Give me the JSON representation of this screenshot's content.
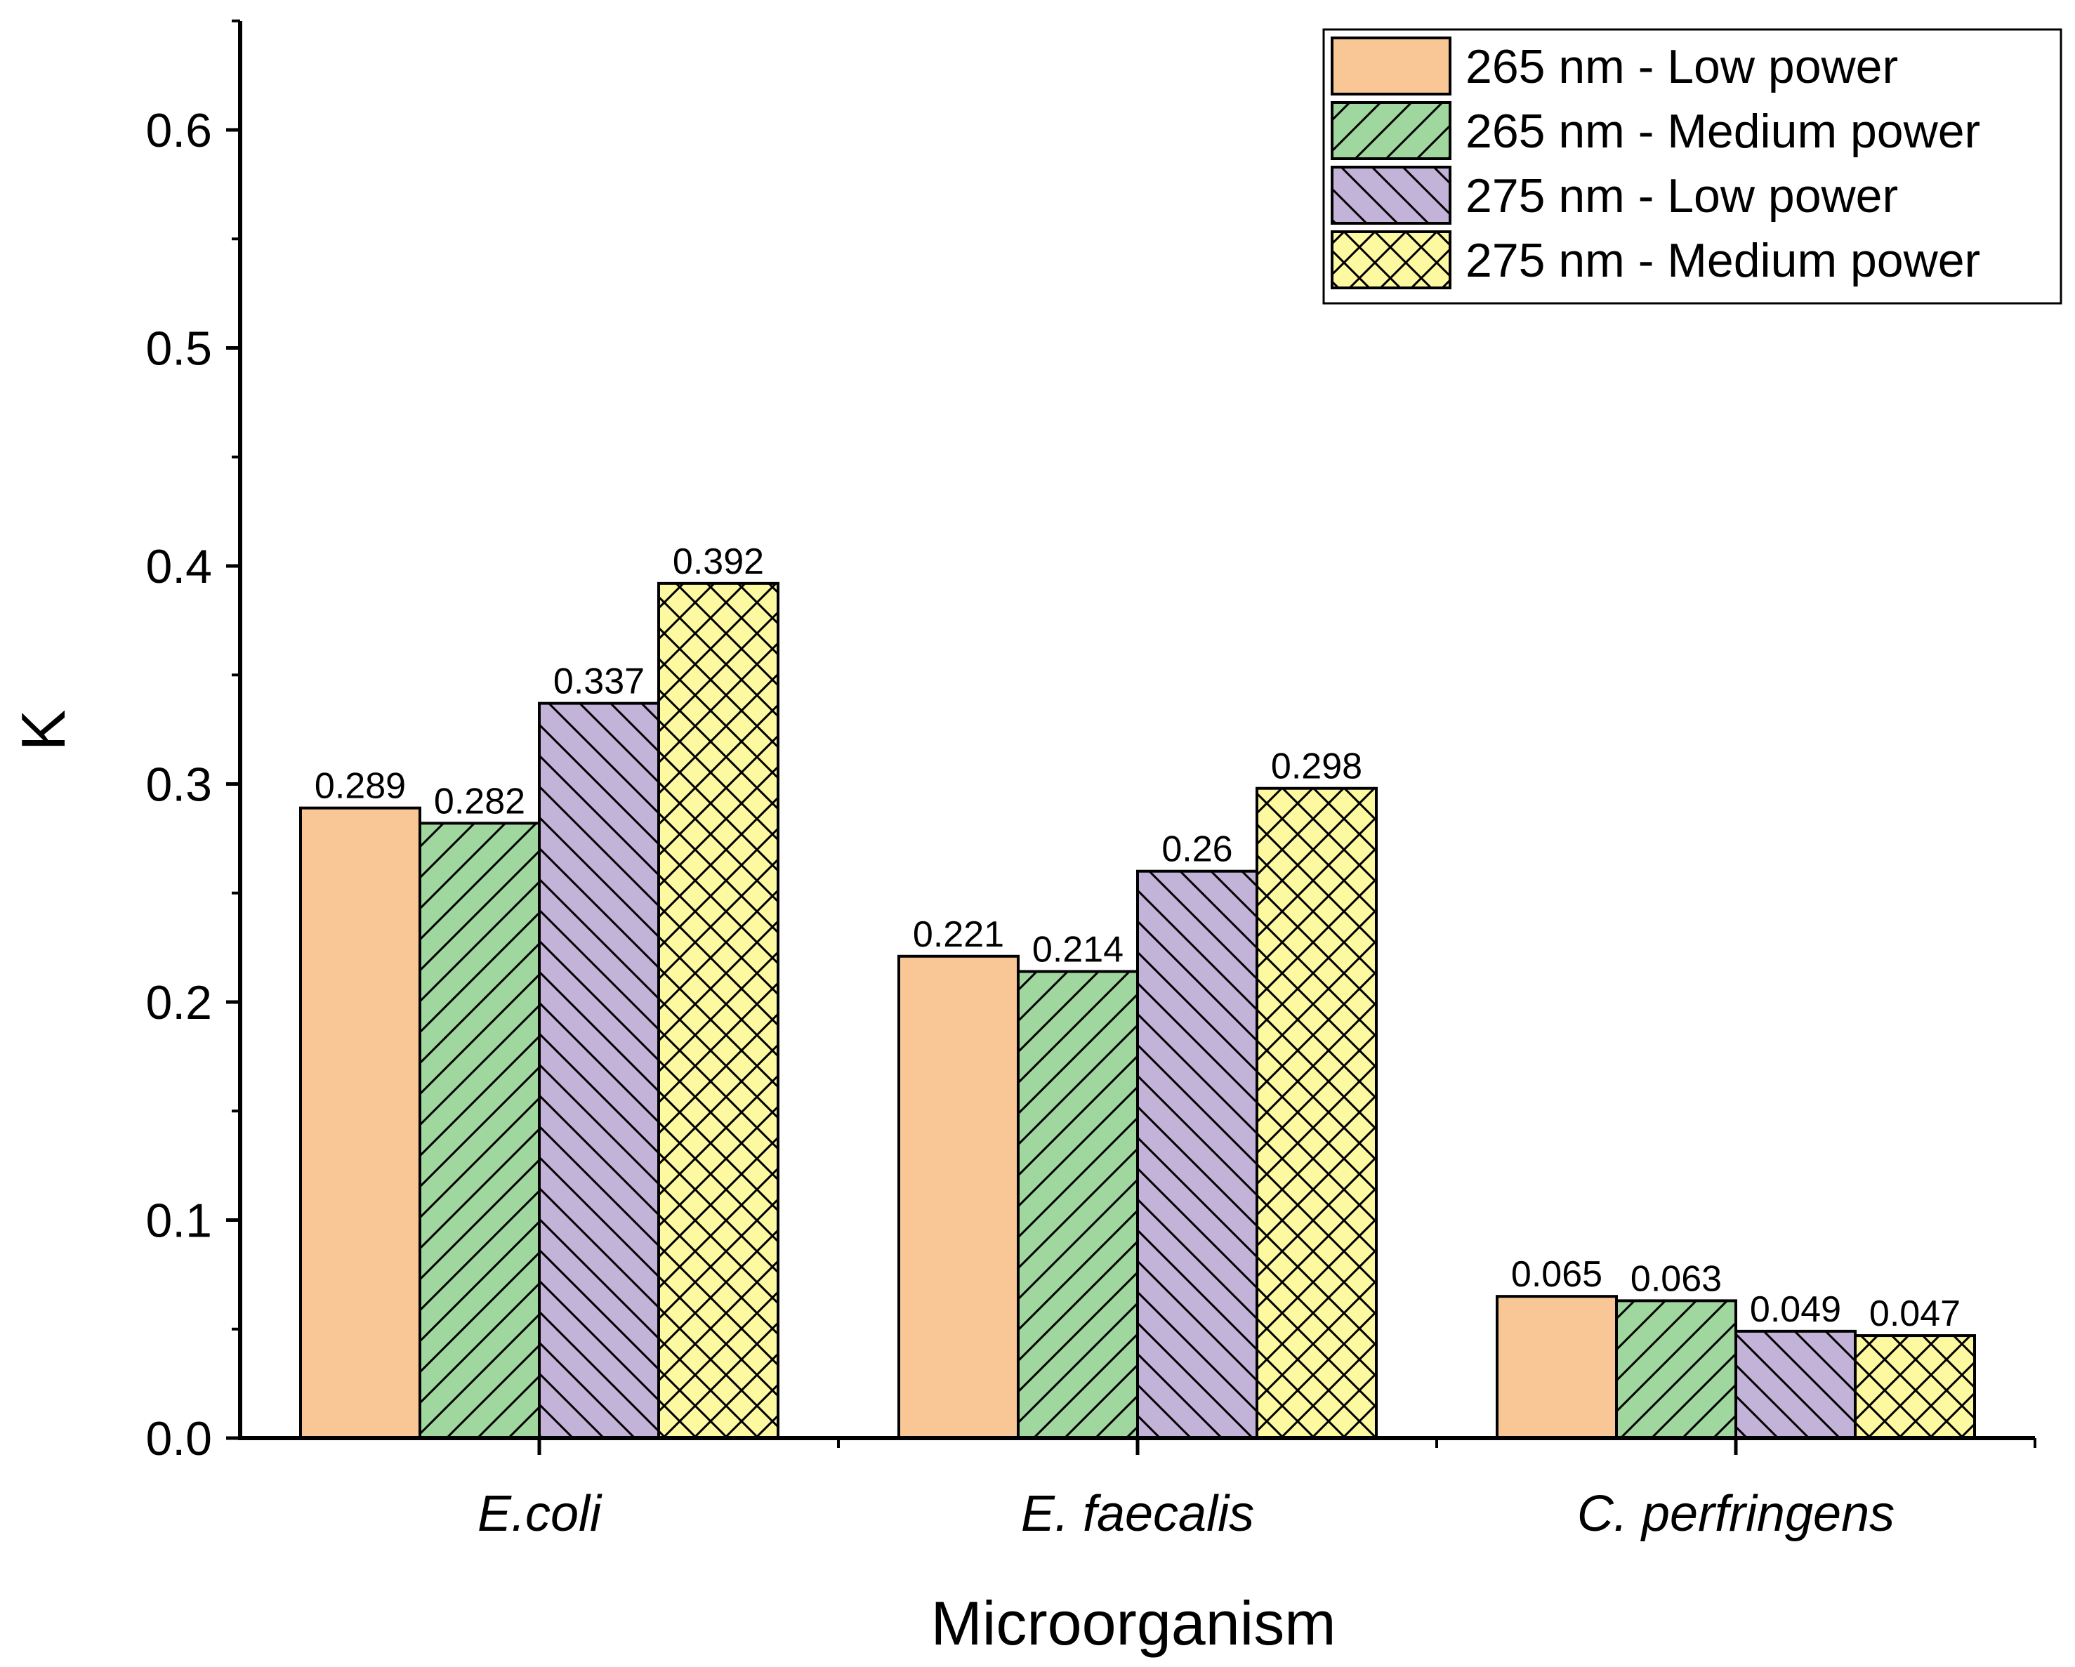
{
  "chart_data": {
    "type": "bar",
    "title": "",
    "xlabel": "Microorganism",
    "ylabel": "K",
    "ylim": [
      0,
      0.65
    ],
    "yticks": [
      "0.0",
      "0.1",
      "0.2",
      "0.3",
      "0.4",
      "0.5",
      "0.6"
    ],
    "categories": [
      "E.coli",
      "E. faecalis",
      "C. perfringens"
    ],
    "legend_position": "top-right",
    "grid": false,
    "series": [
      {
        "name": "265 nm - Low power",
        "values": [
          0.289,
          0.221,
          0.065
        ],
        "labels": [
          "0.289",
          "0.221",
          "0.065"
        ],
        "color": "#F9C696",
        "pattern": "solid"
      },
      {
        "name": "265 nm - Medium power",
        "values": [
          0.282,
          0.214,
          0.063
        ],
        "labels": [
          "0.282",
          "0.214",
          "0.063"
        ],
        "color": "#A0D79F",
        "pattern": "forward-diagonal"
      },
      {
        "name": "275 nm - Low power",
        "values": [
          0.337,
          0.26,
          0.049
        ],
        "labels": [
          "0.337",
          "0.26",
          "0.049"
        ],
        "color": "#C3B3D8",
        "pattern": "back-diagonal"
      },
      {
        "name": "275 nm - Medium power",
        "values": [
          0.392,
          0.298,
          0.047
        ],
        "labels": [
          "0.392",
          "0.298",
          "0.047"
        ],
        "color": "#FDF9A0",
        "pattern": "crosshatch"
      }
    ]
  }
}
